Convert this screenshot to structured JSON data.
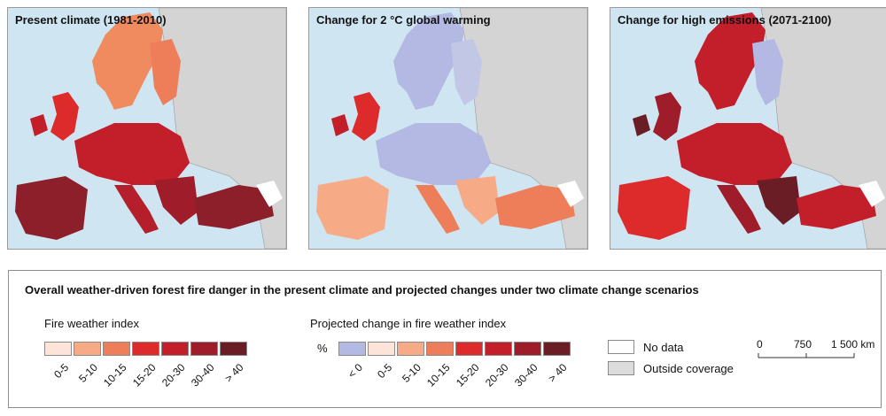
{
  "maps": [
    {
      "id": "present",
      "title": "Present climate (1981-2010)"
    },
    {
      "id": "two_degree",
      "title": "Change for 2 °C global warming"
    },
    {
      "id": "high_emissions",
      "title": "Change for high emissions (2071-2100)"
    }
  ],
  "legend": {
    "title": "Overall weather-driven forest fire danger in the present climate and projected changes under two climate change scenarios",
    "fwi": {
      "heading": "Fire weather index",
      "classes": [
        {
          "label": "0-5",
          "color": "#fde4d9"
        },
        {
          "label": "5-10",
          "color": "#f6ab86"
        },
        {
          "label": "10-15",
          "color": "#ee7d5a"
        },
        {
          "label": "15-20",
          "color": "#dd2a2a"
        },
        {
          "label": "20-30",
          "color": "#c21f2b"
        },
        {
          "label": "30-40",
          "color": "#9f1c2a"
        },
        {
          "label": "> 40",
          "color": "#6b1d25"
        }
      ]
    },
    "change": {
      "heading": "Projected change in fire weather index",
      "unit": "%",
      "classes": [
        {
          "label": "< 0",
          "color": "#b3b9e2"
        },
        {
          "label": "0-5",
          "color": "#fde4d9"
        },
        {
          "label": "5-10",
          "color": "#f6ab86"
        },
        {
          "label": "10-15",
          "color": "#ee7d5a"
        },
        {
          "label": "15-20",
          "color": "#dd2a2a"
        },
        {
          "label": "20-30",
          "color": "#c21f2b"
        },
        {
          "label": "30-40",
          "color": "#9f1c2a"
        },
        {
          "label": "> 40",
          "color": "#6b1d25"
        }
      ]
    },
    "no_data": {
      "label": "No data",
      "color": "#ffffff"
    },
    "outside_coverage": {
      "label": "Outside coverage",
      "color": "#dcdcdc"
    },
    "scale_bar": {
      "labels": [
        "0",
        "750",
        "1 500 km"
      ]
    }
  },
  "colors": {
    "sea": "#cfe6f2",
    "outside": "#d4d4d4",
    "border": "#8c8c8c"
  }
}
